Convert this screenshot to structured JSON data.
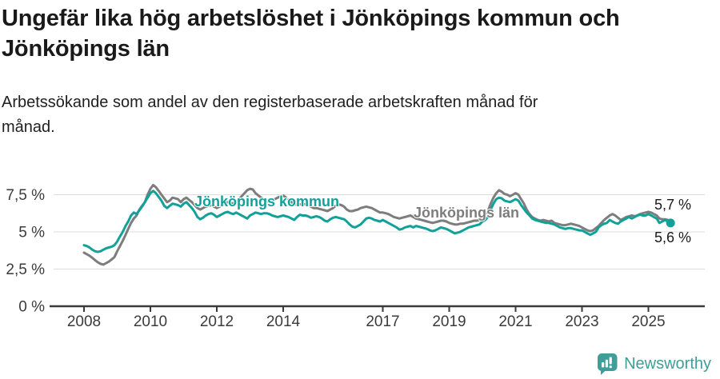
{
  "header": {
    "title": "Ungefär lika hög arbetslöshet i Jönköpings kommun och Jönköpings län",
    "subtitle": "Arbetssökande som andel av den registerbaserade arbetskraften månad för månad."
  },
  "colors": {
    "kommun": "#12a199",
    "lan": "#7d7d7d",
    "logo": "#3f9e97",
    "axis": "#3a3a3a",
    "grid": "#dcdcdc"
  },
  "chart_data": {
    "type": "line",
    "title": "Ungefär lika hög arbetslöshet i Jönköpings kommun och Jönköpings län",
    "subtitle": "Arbetssökande som andel av den registerbaserade arbetskraften månad för månad.",
    "unit": "%",
    "x_start_year": 2008,
    "x_step_months": 1,
    "x_axis": {
      "range": [
        2007.0,
        2026.7
      ],
      "ticks": [
        {
          "value": 2008,
          "label": "2008"
        },
        {
          "value": 2010,
          "label": "2010"
        },
        {
          "value": 2012,
          "label": "2012"
        },
        {
          "value": 2014,
          "label": "2014"
        },
        {
          "value": 2017,
          "label": "2017"
        },
        {
          "value": 2019,
          "label": "2019"
        },
        {
          "value": 2021,
          "label": "2021"
        },
        {
          "value": 2023,
          "label": "2023"
        },
        {
          "value": 2025,
          "label": "2025"
        }
      ]
    },
    "y_axis": {
      "range": [
        0,
        9
      ],
      "grid": true,
      "ticks": [
        {
          "value": 7.5,
          "label": "7,5 %"
        },
        {
          "value": 5,
          "label": "5 %"
        },
        {
          "value": 2.5,
          "label": "2,5 %"
        },
        {
          "value": 0,
          "label": "0 %"
        }
      ]
    },
    "series": [
      {
        "name": "Jönköpings kommun",
        "color": "#12a199",
        "end_label": "5,6 %",
        "end_value": 5.6,
        "values": [
          4.1,
          4.05,
          3.95,
          3.8,
          3.7,
          3.65,
          3.7,
          3.8,
          3.9,
          3.95,
          4.0,
          4.1,
          4.35,
          4.7,
          5.0,
          5.4,
          5.7,
          6.1,
          6.3,
          6.2,
          6.45,
          6.7,
          7.0,
          7.3,
          7.6,
          7.75,
          7.6,
          7.35,
          7.1,
          6.75,
          6.6,
          6.75,
          6.9,
          6.85,
          6.8,
          6.7,
          6.9,
          7.0,
          6.8,
          6.6,
          6.35,
          6.0,
          5.85,
          5.95,
          6.1,
          6.2,
          6.25,
          6.15,
          6.0,
          6.1,
          6.2,
          6.3,
          6.35,
          6.25,
          6.2,
          6.3,
          6.2,
          6.1,
          6.0,
          5.9,
          6.1,
          6.2,
          6.3,
          6.25,
          6.2,
          6.25,
          6.25,
          6.2,
          6.1,
          6.05,
          6.0,
          6.05,
          6.1,
          6.05,
          6.0,
          5.9,
          5.8,
          6.0,
          6.15,
          6.1,
          6.1,
          6.05,
          5.95,
          6.0,
          6.05,
          6.0,
          5.9,
          5.75,
          5.7,
          5.85,
          5.95,
          6.0,
          5.95,
          5.9,
          5.85,
          5.7,
          5.5,
          5.35,
          5.3,
          5.4,
          5.5,
          5.7,
          5.9,
          5.95,
          5.9,
          5.8,
          5.75,
          5.7,
          5.8,
          5.7,
          5.6,
          5.5,
          5.4,
          5.3,
          5.15,
          5.2,
          5.3,
          5.35,
          5.4,
          5.3,
          5.4,
          5.35,
          5.3,
          5.25,
          5.2,
          5.1,
          5.05,
          5.1,
          5.2,
          5.3,
          5.25,
          5.2,
          5.1,
          5.0,
          4.9,
          4.95,
          5.0,
          5.1,
          5.2,
          5.3,
          5.35,
          5.4,
          5.45,
          5.5,
          5.7,
          5.8,
          6.0,
          6.5,
          6.9,
          7.2,
          7.3,
          7.25,
          7.1,
          7.05,
          7.0,
          7.1,
          7.2,
          7.1,
          6.8,
          6.55,
          6.3,
          6.1,
          5.9,
          5.8,
          5.75,
          5.7,
          5.65,
          5.6,
          5.6,
          5.55,
          5.5,
          5.4,
          5.3,
          5.25,
          5.2,
          5.25,
          5.25,
          5.2,
          5.15,
          5.1,
          5.1,
          5.0,
          4.9,
          4.8,
          4.9,
          5.0,
          5.3,
          5.45,
          5.55,
          5.6,
          5.8,
          5.7,
          5.6,
          5.55,
          5.7,
          5.8,
          5.9,
          6.0,
          5.9,
          6.0,
          6.1,
          6.15,
          6.1,
          6.1,
          6.2,
          6.1,
          6.0,
          5.9,
          5.6,
          5.7,
          5.8,
          5.7,
          5.6
        ]
      },
      {
        "name": "Jönköpings län",
        "color": "#7d7d7d",
        "end_label": "5,7 %",
        "end_value": 5.7,
        "values": [
          3.6,
          3.5,
          3.4,
          3.25,
          3.1,
          2.95,
          2.85,
          2.8,
          2.9,
          3.0,
          3.15,
          3.3,
          3.7,
          4.05,
          4.4,
          4.8,
          5.2,
          5.6,
          5.9,
          6.1,
          6.5,
          6.75,
          7.0,
          7.5,
          7.9,
          8.15,
          8.0,
          7.75,
          7.5,
          7.25,
          7.0,
          7.1,
          7.3,
          7.25,
          7.2,
          7.0,
          7.2,
          7.3,
          7.15,
          7.0,
          6.8,
          6.6,
          6.5,
          6.6,
          6.7,
          6.75,
          6.8,
          6.7,
          6.6,
          6.7,
          6.8,
          6.9,
          7.0,
          6.95,
          6.9,
          7.0,
          7.2,
          7.4,
          7.6,
          7.8,
          7.9,
          7.85,
          7.6,
          7.45,
          7.3,
          7.2,
          7.1,
          7.0,
          7.1,
          7.2,
          7.3,
          7.4,
          7.45,
          7.3,
          7.15,
          7.0,
          6.9,
          6.8,
          6.85,
          6.9,
          6.85,
          6.8,
          6.7,
          6.6,
          6.6,
          6.55,
          6.5,
          6.45,
          6.4,
          6.5,
          6.6,
          6.75,
          6.85,
          6.8,
          6.7,
          6.5,
          6.4,
          6.4,
          6.45,
          6.5,
          6.6,
          6.65,
          6.7,
          6.65,
          6.6,
          6.5,
          6.4,
          6.3,
          6.3,
          6.25,
          6.2,
          6.1,
          6.0,
          5.95,
          5.9,
          5.95,
          6.0,
          6.05,
          6.1,
          6.0,
          5.9,
          5.85,
          5.8,
          5.75,
          5.7,
          5.65,
          5.6,
          5.65,
          5.7,
          5.75,
          5.75,
          5.7,
          5.6,
          5.55,
          5.5,
          5.5,
          5.55,
          5.55,
          5.6,
          5.65,
          5.7,
          5.75,
          5.75,
          5.8,
          6.0,
          6.2,
          6.4,
          6.9,
          7.3,
          7.6,
          7.8,
          7.7,
          7.55,
          7.5,
          7.4,
          7.5,
          7.6,
          7.5,
          7.2,
          6.9,
          6.5,
          6.2,
          6.0,
          5.9,
          5.8,
          5.75,
          5.8,
          5.75,
          5.7,
          5.75,
          5.6,
          5.55,
          5.5,
          5.45,
          5.45,
          5.5,
          5.55,
          5.5,
          5.45,
          5.4,
          5.3,
          5.2,
          5.1,
          5.05,
          5.1,
          5.25,
          5.4,
          5.6,
          5.8,
          5.95,
          6.1,
          6.2,
          6.1,
          5.95,
          5.8,
          5.9,
          6.0,
          6.05,
          6.1,
          6.05,
          6.1,
          6.2,
          6.25,
          6.3,
          6.35,
          6.3,
          6.2,
          6.1,
          5.9,
          5.85,
          5.85,
          5.8,
          5.7
        ]
      }
    ]
  },
  "footer": {
    "brand": "Newsworthy"
  }
}
